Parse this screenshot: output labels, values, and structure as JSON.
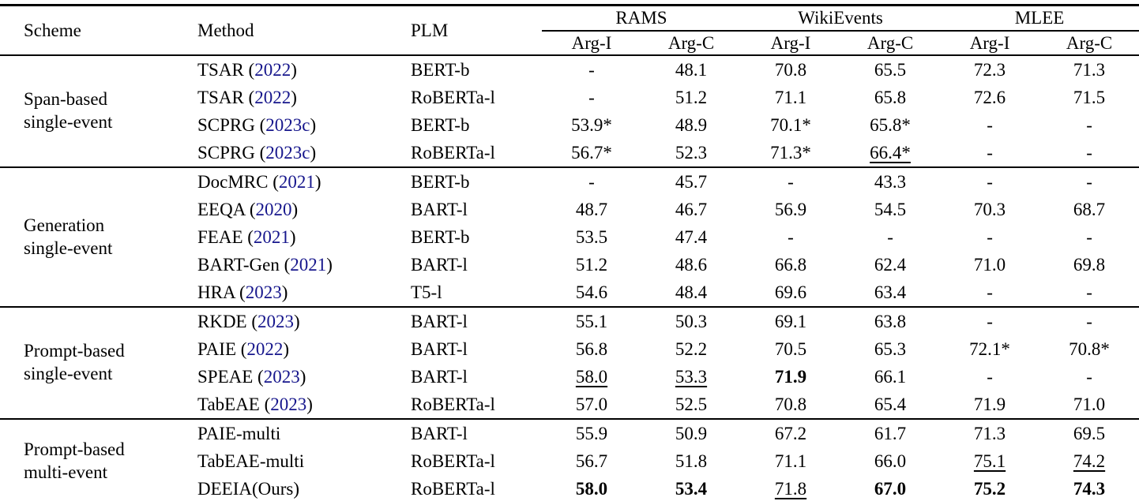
{
  "colors": {
    "text": "#000000",
    "citation": "#16168c",
    "rule": "#000000"
  },
  "table": {
    "header": {
      "scheme": "Scheme",
      "method": "Method",
      "plm": "PLM",
      "datasets": [
        "RAMS",
        "WikiEvents",
        "MLEE"
      ],
      "subcols": [
        "Arg-I",
        "Arg-C",
        "Arg-I",
        "Arg-C",
        "Arg-I",
        "Arg-C"
      ]
    },
    "sections": [
      {
        "scheme_lines": [
          "Span-based",
          "single-event"
        ],
        "rows": [
          {
            "method": "TSAR",
            "year": "2022",
            "plm": "BERT-b",
            "values": [
              {
                "t": "-"
              },
              {
                "t": "48.1"
              },
              {
                "t": "70.8"
              },
              {
                "t": "65.5"
              },
              {
                "t": "72.3"
              },
              {
                "t": "71.3"
              }
            ]
          },
          {
            "method": "TSAR",
            "year": "2022",
            "plm": "RoBERTa-l",
            "values": [
              {
                "t": "-"
              },
              {
                "t": "51.2"
              },
              {
                "t": "71.1"
              },
              {
                "t": "65.8"
              },
              {
                "t": "72.6"
              },
              {
                "t": "71.5"
              }
            ]
          },
          {
            "method": "SCPRG",
            "year": "2023c",
            "plm": "BERT-b",
            "values": [
              {
                "t": "53.9*"
              },
              {
                "t": "48.9"
              },
              {
                "t": "70.1*"
              },
              {
                "t": "65.8*"
              },
              {
                "t": "-"
              },
              {
                "t": "-"
              }
            ]
          },
          {
            "method": "SCPRG",
            "year": "2023c",
            "plm": "RoBERTa-l",
            "values": [
              {
                "t": "56.7*"
              },
              {
                "t": "52.3"
              },
              {
                "t": "71.3*"
              },
              {
                "t": "66.4*",
                "u": true
              },
              {
                "t": "-"
              },
              {
                "t": "-"
              }
            ]
          }
        ]
      },
      {
        "scheme_lines": [
          "Generation",
          "single-event"
        ],
        "rows": [
          {
            "method": "DocMRC",
            "year": "2021",
            "plm": "BERT-b",
            "values": [
              {
                "t": "-"
              },
              {
                "t": "45.7"
              },
              {
                "t": "-"
              },
              {
                "t": "43.3"
              },
              {
                "t": "-"
              },
              {
                "t": "-"
              }
            ]
          },
          {
            "method": "EEQA",
            "year": "2020",
            "plm": "BART-l",
            "values": [
              {
                "t": "48.7"
              },
              {
                "t": "46.7"
              },
              {
                "t": "56.9"
              },
              {
                "t": "54.5"
              },
              {
                "t": "70.3"
              },
              {
                "t": "68.7"
              }
            ]
          },
          {
            "method": "FEAE",
            "year": "2021",
            "plm": "BERT-b",
            "values": [
              {
                "t": "53.5"
              },
              {
                "t": "47.4"
              },
              {
                "t": "-"
              },
              {
                "t": "-"
              },
              {
                "t": "-"
              },
              {
                "t": "-"
              }
            ]
          },
          {
            "method": "BART-Gen",
            "year": "2021",
            "plm": "BART-l",
            "values": [
              {
                "t": "51.2"
              },
              {
                "t": "48.6"
              },
              {
                "t": "66.8"
              },
              {
                "t": "62.4"
              },
              {
                "t": "71.0"
              },
              {
                "t": "69.8"
              }
            ]
          },
          {
            "method": "HRA",
            "year": "2023",
            "plm": "T5-l",
            "values": [
              {
                "t": "54.6"
              },
              {
                "t": "48.4"
              },
              {
                "t": "69.6"
              },
              {
                "t": "63.4"
              },
              {
                "t": "-"
              },
              {
                "t": "-"
              }
            ]
          }
        ]
      },
      {
        "scheme_lines": [
          "Prompt-based",
          "single-event"
        ],
        "rows": [
          {
            "method": "RKDE",
            "year": "2023",
            "plm": "BART-l",
            "values": [
              {
                "t": "55.1"
              },
              {
                "t": "50.3"
              },
              {
                "t": "69.1"
              },
              {
                "t": "63.8"
              },
              {
                "t": "-"
              },
              {
                "t": "-"
              }
            ]
          },
          {
            "method": "PAIE",
            "year": "2022",
            "plm": "BART-l",
            "values": [
              {
                "t": "56.8"
              },
              {
                "t": "52.2"
              },
              {
                "t": "70.5"
              },
              {
                "t": "65.3"
              },
              {
                "t": "72.1*"
              },
              {
                "t": "70.8*"
              }
            ]
          },
          {
            "method": "SPEAE",
            "year": "2023",
            "plm": "BART-l",
            "values": [
              {
                "t": "58.0",
                "u": true
              },
              {
                "t": "53.3",
                "u": true
              },
              {
                "t": "71.9",
                "b": true
              },
              {
                "t": "66.1"
              },
              {
                "t": "-"
              },
              {
                "t": "-"
              }
            ]
          },
          {
            "method": "TabEAE",
            "year": "2023",
            "plm": "RoBERTa-l",
            "values": [
              {
                "t": "57.0"
              },
              {
                "t": "52.5"
              },
              {
                "t": "70.8"
              },
              {
                "t": "65.4"
              },
              {
                "t": "71.9"
              },
              {
                "t": "71.0"
              }
            ]
          }
        ]
      },
      {
        "scheme_lines": [
          "Prompt-based",
          "multi-event"
        ],
        "rows": [
          {
            "method": "PAIE-multi",
            "year": null,
            "plm": "BART-l",
            "values": [
              {
                "t": "55.9"
              },
              {
                "t": "50.9"
              },
              {
                "t": "67.2"
              },
              {
                "t": "61.7"
              },
              {
                "t": "71.3"
              },
              {
                "t": "69.5"
              }
            ]
          },
          {
            "method": "TabEAE-multi",
            "year": null,
            "plm": "RoBERTa-l",
            "values": [
              {
                "t": "56.7"
              },
              {
                "t": "51.8"
              },
              {
                "t": "71.1"
              },
              {
                "t": "66.0"
              },
              {
                "t": "75.1",
                "u": true
              },
              {
                "t": "74.2",
                "u": true
              }
            ]
          },
          {
            "method": "DEEIA(Ours)",
            "year": null,
            "plm": "RoBERTa-l",
            "values": [
              {
                "t": "58.0",
                "b": true
              },
              {
                "t": "53.4",
                "b": true
              },
              {
                "t": "71.8",
                "u": true
              },
              {
                "t": "67.0",
                "b": true
              },
              {
                "t": "75.2",
                "b": true
              },
              {
                "t": "74.3",
                "b": true
              }
            ]
          }
        ]
      }
    ]
  }
}
